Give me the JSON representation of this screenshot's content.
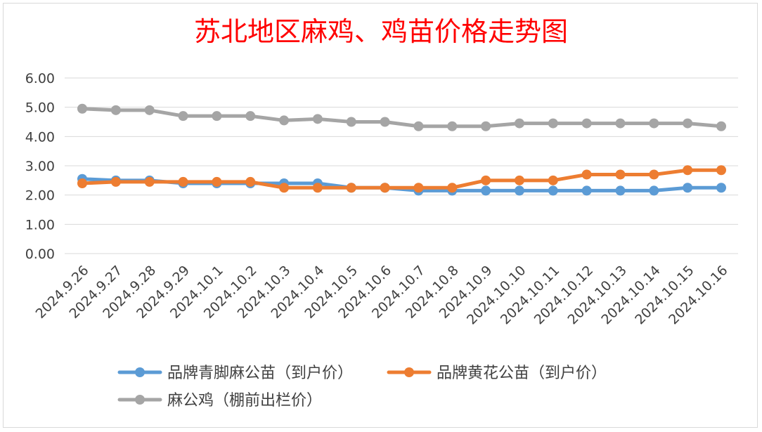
{
  "chart_data": {
    "type": "line",
    "title": "苏北地区麻鸡、鸡苗价格走势图",
    "xlabel": "",
    "ylabel": "",
    "ylim": [
      0,
      6
    ],
    "yticks": [
      "0.00",
      "1.00",
      "2.00",
      "3.00",
      "4.00",
      "5.00",
      "6.00"
    ],
    "grid": "horizontal",
    "legend_position": "bottom",
    "categories": [
      "2024.9.26",
      "2024.9.27",
      "2024.9.28",
      "2024.9.29",
      "2024.10.1",
      "2024.10.2",
      "2024.10.3",
      "2024.10.4",
      "2024.10.5",
      "2024.10.6",
      "2024.10.7",
      "2024.10.8",
      "2024.10.9",
      "2024.10.10",
      "2024.10.11",
      "2024.10.12",
      "2024.10.13",
      "2024.10.14",
      "2024.10.15",
      "2024.10.16"
    ],
    "series": [
      {
        "name": "品牌青脚麻公苗（到户价）",
        "color": "#5b9bd5",
        "values": [
          2.55,
          2.5,
          2.5,
          2.4,
          2.4,
          2.4,
          2.4,
          2.4,
          2.25,
          2.25,
          2.15,
          2.15,
          2.15,
          2.15,
          2.15,
          2.15,
          2.15,
          2.15,
          2.25,
          2.25
        ]
      },
      {
        "name": "品牌黄花公苗（到户价）",
        "color": "#ed7d31",
        "values": [
          2.4,
          2.45,
          2.45,
          2.45,
          2.45,
          2.45,
          2.25,
          2.25,
          2.25,
          2.25,
          2.25,
          2.25,
          2.5,
          2.5,
          2.5,
          2.7,
          2.7,
          2.7,
          2.85,
          2.85
        ]
      },
      {
        "name": "麻公鸡（棚前出栏价）",
        "color": "#a5a5a5",
        "values": [
          4.95,
          4.9,
          4.9,
          4.7,
          4.7,
          4.7,
          4.55,
          4.6,
          4.5,
          4.5,
          4.35,
          4.35,
          4.35,
          4.45,
          4.45,
          4.45,
          4.45,
          4.45,
          4.45,
          4.35
        ]
      }
    ]
  }
}
